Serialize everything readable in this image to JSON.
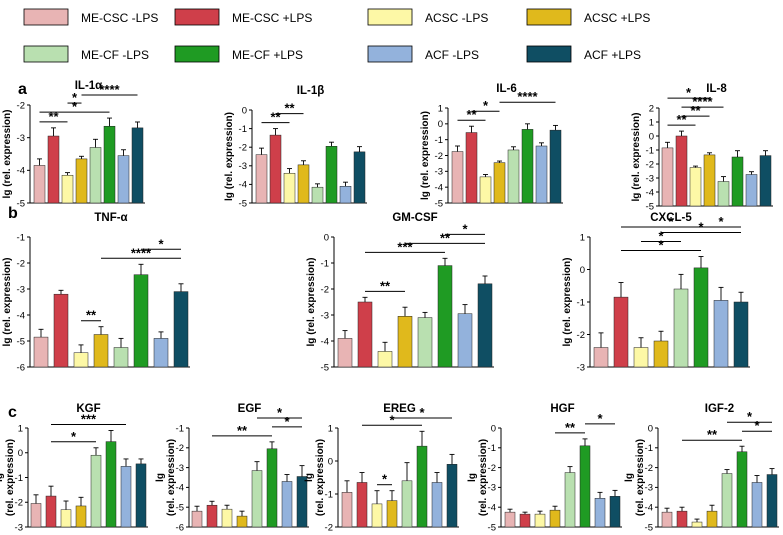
{
  "figure_colors": {
    "ME-CSC -LPS": "#e8b4b4",
    "ME-CSC +LPS": "#cf3f4a",
    "ACSC -LPS": "#fdf8a6",
    "ACSC +LPS": "#e0b91c",
    "ME-CF -LPS": "#b9e0b0",
    "ME-CF +LPS": "#1f9b23",
    "ACF -LPS": "#93b2dc",
    "ACF +LPS": "#0f4e63"
  },
  "legend": [
    "ME-CSC -LPS",
    "ME-CSC +LPS",
    "ACSC -LPS",
    "ACSC +LPS",
    "ME-CF -LPS",
    "ME-CF +LPS",
    "ACF -LPS",
    "ACF +LPS"
  ],
  "panel_labels": {
    "a": "a",
    "b": "b",
    "c": "c"
  },
  "ylabel_line1": "lg (rel. expression)",
  "ylabel_line2": "(rel. expression)",
  "ylabel_prefix": "lg",
  "chart_data": [
    {
      "type": "bar",
      "title": "IL-1α",
      "ylim": [
        -5,
        -2
      ],
      "yticks": [
        -2,
        -3,
        -4,
        -5
      ],
      "categories": [
        "ME-CSC -LPS",
        "ME-CSC +LPS",
        "ACSC -LPS",
        "ACSC +LPS",
        "ME-CF -LPS",
        "ME-CF +LPS",
        "ACF -LPS",
        "ACF +LPS"
      ],
      "values": [
        -3.85,
        -2.95,
        -4.15,
        -3.65,
        -3.3,
        -2.65,
        -3.55,
        -2.7
      ],
      "errors": [
        0.2,
        0.25,
        0.08,
        0.08,
        0.25,
        0.25,
        0.18,
        0.18
      ],
      "brackets": [
        {
          "from": 0,
          "to": 2,
          "label": "**"
        },
        {
          "from": 0,
          "to": 5,
          "label": "*"
        },
        {
          "from": 2,
          "to": 3,
          "label": "*"
        },
        {
          "from": 3,
          "to": 7,
          "label": "****"
        }
      ]
    },
    {
      "type": "bar",
      "title": "IL-1β",
      "ylim": [
        -5,
        0
      ],
      "yticks": [
        0,
        -1,
        -2,
        -3,
        -4,
        -5
      ],
      "categories": [
        "ME-CSC -LPS",
        "ME-CSC +LPS",
        "ACSC -LPS",
        "ACSC +LPS",
        "ME-CF -LPS",
        "ME-CF +LPS",
        "ACF -LPS",
        "ACF +LPS"
      ],
      "values": [
        -2.4,
        -1.35,
        -3.4,
        -2.95,
        -4.15,
        -1.95,
        -4.1,
        -2.25
      ],
      "errors": [
        0.35,
        0.35,
        0.25,
        0.22,
        0.18,
        0.22,
        0.22,
        0.28
      ],
      "brackets": [
        {
          "from": 0,
          "to": 2,
          "label": "**"
        },
        {
          "from": 1,
          "to": 3,
          "label": "**"
        }
      ]
    },
    {
      "type": "bar",
      "title": "IL-6",
      "ylim": [
        -5,
        1
      ],
      "yticks": [
        1,
        0,
        -1,
        -2,
        -3,
        -4,
        -5
      ],
      "categories": [
        "ME-CSC -LPS",
        "ME-CSC +LPS",
        "ACSC -LPS",
        "ACSC +LPS",
        "ME-CF -LPS",
        "ME-CF +LPS",
        "ACF -LPS",
        "ACF +LPS"
      ],
      "values": [
        -1.75,
        -0.55,
        -3.35,
        -2.45,
        -1.65,
        -0.35,
        -1.4,
        -0.4
      ],
      "errors": [
        0.35,
        0.4,
        0.15,
        0.1,
        0.2,
        0.35,
        0.2,
        0.3
      ],
      "brackets": [
        {
          "from": 0,
          "to": 2,
          "label": "**"
        },
        {
          "from": 1,
          "to": 3,
          "label": "*"
        },
        {
          "from": 3,
          "to": 7,
          "label": "****"
        }
      ]
    },
    {
      "type": "bar",
      "title": "IL-8",
      "ylim": [
        -5,
        2
      ],
      "yticks": [
        2,
        1,
        0,
        -1,
        -2,
        -3,
        -4,
        -5
      ],
      "categories": [
        "ME-CSC -LPS",
        "ME-CSC +LPS",
        "ACSC -LPS",
        "ACSC +LPS",
        "ME-CF -LPS",
        "ME-CF +LPS",
        "ACF -LPS",
        "ACF +LPS"
      ],
      "values": [
        -0.85,
        0.0,
        -2.25,
        -1.35,
        -3.25,
        -1.5,
        -2.75,
        -1.4
      ],
      "errors": [
        0.4,
        0.35,
        0.1,
        0.15,
        0.35,
        0.45,
        0.2,
        0.35
      ],
      "brackets": [
        {
          "from": 0,
          "to": 2,
          "label": "**"
        },
        {
          "from": 1,
          "to": 3,
          "label": "**"
        },
        {
          "from": 1,
          "to": 4,
          "label": "****"
        },
        {
          "from": 0,
          "to": 3,
          "label": "*"
        }
      ]
    },
    {
      "type": "bar",
      "title": "TNF-α",
      "ylim": [
        -6,
        -1
      ],
      "yticks": [
        -1,
        -2,
        -3,
        -4,
        -5,
        -6
      ],
      "categories": [
        "ME-CSC -LPS",
        "ME-CSC +LPS",
        "ACSC -LPS",
        "ACSC +LPS",
        "ME-CF -LPS",
        "ME-CF +LPS",
        "ACF -LPS",
        "ACF +LPS"
      ],
      "values": [
        -4.85,
        -3.2,
        -5.45,
        -4.75,
        -5.25,
        -2.45,
        -4.9,
        -3.1
      ],
      "errors": [
        0.3,
        0.15,
        0.3,
        0.3,
        0.35,
        0.4,
        0.25,
        0.3
      ],
      "brackets": [
        {
          "from": 2,
          "to": 3,
          "label": "**"
        },
        {
          "from": 3,
          "to": 7,
          "label": "****"
        },
        {
          "from": 5,
          "to": 7,
          "label": "*"
        }
      ]
    },
    {
      "type": "bar",
      "title": "GM-CSF",
      "ylim": [
        -5,
        0
      ],
      "yticks": [
        0,
        -1,
        -2,
        -3,
        -4,
        -5
      ],
      "categories": [
        "ME-CSC -LPS",
        "ME-CSC +LPS",
        "ACSC -LPS",
        "ACSC +LPS",
        "ME-CF -LPS",
        "ME-CF +LPS",
        "ACF -LPS",
        "ACF +LPS"
      ],
      "values": [
        -3.9,
        -2.5,
        -4.4,
        -3.05,
        -3.1,
        -1.1,
        -2.95,
        -1.8
      ],
      "errors": [
        0.3,
        0.18,
        0.35,
        0.35,
        0.2,
        0.28,
        0.35,
        0.3
      ],
      "brackets": [
        {
          "from": 1,
          "to": 3,
          "label": "**"
        },
        {
          "from": 1,
          "to": 5,
          "label": "***"
        },
        {
          "from": 3,
          "to": 7,
          "label": "**"
        },
        {
          "from": 5,
          "to": 7,
          "label": "*"
        }
      ]
    },
    {
      "type": "bar",
      "title": "CXCL-5",
      "ylim": [
        -3,
        1
      ],
      "yticks": [
        1,
        0,
        -1,
        -2,
        -3
      ],
      "categories": [
        "ME-CSC -LPS",
        "ME-CSC +LPS",
        "ACSC -LPS",
        "ACSC +LPS",
        "ME-CF -LPS",
        "ME-CF +LPS",
        "ACF -LPS",
        "ACF +LPS"
      ],
      "values": [
        -2.4,
        -0.85,
        -2.4,
        -2.2,
        -0.6,
        0.05,
        -0.95,
        -1.0
      ],
      "errors": [
        0.45,
        0.45,
        0.3,
        0.3,
        0.45,
        0.35,
        0.4,
        0.3
      ],
      "brackets": [
        {
          "from": 1,
          "to": 5,
          "label": "*"
        },
        {
          "from": 2,
          "to": 4,
          "label": "*"
        },
        {
          "from": 3,
          "to": 7,
          "label": "*"
        },
        {
          "from": 5,
          "to": 7,
          "label": "*"
        },
        {
          "from": 1,
          "to": 6,
          "label": "*"
        }
      ]
    },
    {
      "type": "bar",
      "title": "KGF",
      "ylim": [
        -3,
        1
      ],
      "yticks": [
        1,
        0,
        -1,
        -2,
        -3
      ],
      "categories": [
        "ME-CSC -LPS",
        "ME-CSC +LPS",
        "ACSC -LPS",
        "ACSC +LPS",
        "ME-CF -LPS",
        "ME-CF +LPS",
        "ACF -LPS",
        "ACF +LPS"
      ],
      "values": [
        -2.05,
        -1.75,
        -2.3,
        -2.15,
        -0.1,
        0.45,
        -0.55,
        -0.45
      ],
      "errors": [
        0.35,
        0.4,
        0.35,
        0.35,
        0.3,
        0.45,
        0.3,
        0.2
      ],
      "brackets": [
        {
          "from": 1,
          "to": 4,
          "label": "*"
        },
        {
          "from": 1,
          "to": 6,
          "label": "***"
        }
      ]
    },
    {
      "type": "bar",
      "title": "EGF",
      "ylim": [
        -6,
        -1
      ],
      "yticks": [
        -1,
        -2,
        -3,
        -4,
        -5,
        -6
      ],
      "categories": [
        "ME-CSC -LPS",
        "ME-CSC +LPS",
        "ACSC -LPS",
        "ACSC +LPS",
        "ME-CF -LPS",
        "ME-CF +LPS",
        "ACF -LPS",
        "ACF +LPS"
      ],
      "values": [
        -5.2,
        -4.9,
        -5.1,
        -5.45,
        -3.15,
        -2.05,
        -3.7,
        -3.45
      ],
      "errors": [
        0.25,
        0.2,
        0.2,
        0.25,
        0.45,
        0.35,
        0.35,
        0.55
      ],
      "brackets": [
        {
          "from": 1,
          "to": 5,
          "label": "**"
        },
        {
          "from": 5,
          "to": 7,
          "label": "*"
        },
        {
          "from": 4,
          "to": 7,
          "label": "*"
        }
      ]
    },
    {
      "type": "bar",
      "title": "EREG",
      "ylim": [
        -2,
        1
      ],
      "yticks": [
        1,
        0,
        -1,
        -2
      ],
      "categories": [
        "ME-CSC -LPS",
        "ME-CSC +LPS",
        "ACSC -LPS",
        "ACSC +LPS",
        "ME-CF -LPS",
        "ME-CF +LPS",
        "ACF -LPS",
        "ACF +LPS"
      ],
      "values": [
        -0.95,
        -0.65,
        -1.3,
        -1.2,
        -0.6,
        0.45,
        -0.65,
        -0.1
      ],
      "errors": [
        0.35,
        0.3,
        0.4,
        0.3,
        0.55,
        0.45,
        0.3,
        0.3
      ],
      "brackets": [
        {
          "from": 2,
          "to": 3,
          "label": "*"
        },
        {
          "from": 1,
          "to": 5,
          "label": "*"
        },
        {
          "from": 3,
          "to": 7,
          "label": "*"
        }
      ]
    },
    {
      "type": "bar",
      "title": "HGF",
      "ylim": [
        -5,
        0
      ],
      "yticks": [
        0,
        -1,
        -2,
        -3,
        -4,
        -5
      ],
      "categories": [
        "ME-CSC -LPS",
        "ME-CSC +LPS",
        "ACSC -LPS",
        "ACSC +LPS",
        "ME-CF -LPS",
        "ME-CF +LPS",
        "ACF -LPS",
        "ACF +LPS"
      ],
      "values": [
        -4.25,
        -4.35,
        -4.35,
        -4.15,
        -2.25,
        -0.9,
        -3.55,
        -3.45
      ],
      "errors": [
        0.15,
        0.1,
        0.15,
        0.2,
        0.3,
        0.35,
        0.3,
        0.3
      ],
      "brackets": [
        {
          "from": 3,
          "to": 5,
          "label": "**"
        },
        {
          "from": 5,
          "to": 7,
          "label": "*"
        }
      ]
    },
    {
      "type": "bar",
      "title": "IGF-2",
      "ylim": [
        -5,
        0
      ],
      "yticks": [
        0,
        -1,
        -2,
        -3,
        -4,
        -5
      ],
      "categories": [
        "ME-CSC -LPS",
        "ME-CSC +LPS",
        "ACSC -LPS",
        "ACSC +LPS",
        "ME-CF -LPS",
        "ME-CF +LPS",
        "ACF -LPS",
        "ACF +LPS"
      ],
      "values": [
        -4.25,
        -4.2,
        -4.75,
        -4.2,
        -2.3,
        -1.2,
        -2.75,
        -2.35
      ],
      "errors": [
        0.2,
        0.2,
        0.15,
        0.3,
        0.2,
        0.28,
        0.35,
        0.3
      ],
      "brackets": [
        {
          "from": 1,
          "to": 5,
          "label": "**"
        },
        {
          "from": 5,
          "to": 7,
          "label": "*"
        },
        {
          "from": 4,
          "to": 7,
          "label": "*"
        }
      ]
    }
  ]
}
